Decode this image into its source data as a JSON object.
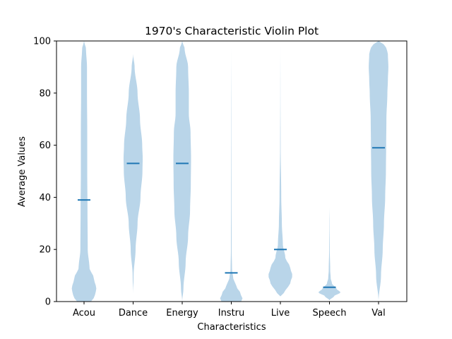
{
  "chart_data": {
    "type": "violin",
    "title": "1970's Characteristic Violin Plot",
    "xlabel": "Characteristics",
    "ylabel": "Average Values",
    "ylim": [
      0,
      100
    ],
    "yticks": [
      "0",
      "20",
      "40",
      "60",
      "80",
      "100"
    ],
    "grid": false,
    "colors": {
      "body": "#b9d5e9",
      "mean": "#1f77b4",
      "axis": "#000000"
    },
    "categories": [
      "Acou",
      "Dance",
      "Energy",
      "Instru",
      "Live",
      "Speech",
      "Val"
    ],
    "series": [
      {
        "category": "Acou",
        "mean": 39,
        "min": 0,
        "max": 100,
        "profile": [
          [
            0,
            0.28
          ],
          [
            2,
            0.44
          ],
          [
            5,
            0.5
          ],
          [
            9,
            0.4
          ],
          [
            13,
            0.22
          ],
          [
            20,
            0.15
          ],
          [
            35,
            0.14
          ],
          [
            50,
            0.13
          ],
          [
            65,
            0.13
          ],
          [
            80,
            0.12
          ],
          [
            90,
            0.12
          ],
          [
            97,
            0.08
          ],
          [
            100,
            0.0
          ]
        ]
      },
      {
        "category": "Dance",
        "mean": 53,
        "min": 3,
        "max": 95,
        "profile": [
          [
            3,
            0.0
          ],
          [
            10,
            0.02
          ],
          [
            20,
            0.1
          ],
          [
            30,
            0.18
          ],
          [
            40,
            0.3
          ],
          [
            50,
            0.38
          ],
          [
            55,
            0.39
          ],
          [
            60,
            0.37
          ],
          [
            70,
            0.28
          ],
          [
            80,
            0.18
          ],
          [
            90,
            0.06
          ],
          [
            95,
            0.0
          ]
        ]
      },
      {
        "category": "Energy",
        "mean": 53,
        "min": 0,
        "max": 100,
        "profile": [
          [
            0,
            0.0
          ],
          [
            5,
            0.05
          ],
          [
            15,
            0.14
          ],
          [
            25,
            0.24
          ],
          [
            35,
            0.32
          ],
          [
            45,
            0.35
          ],
          [
            55,
            0.36
          ],
          [
            65,
            0.34
          ],
          [
            72,
            0.27
          ],
          [
            80,
            0.27
          ],
          [
            90,
            0.24
          ],
          [
            97,
            0.1
          ],
          [
            100,
            0.0
          ]
        ]
      },
      {
        "category": "Instru",
        "mean": 11,
        "min": 0,
        "max": 100,
        "profile": [
          [
            0,
            0.4
          ],
          [
            1,
            0.46
          ],
          [
            3,
            0.38
          ],
          [
            6,
            0.2
          ],
          [
            9,
            0.08
          ],
          [
            12,
            0.03
          ],
          [
            20,
            0.015
          ],
          [
            40,
            0.01
          ],
          [
            70,
            0.006
          ],
          [
            100,
            0.0
          ]
        ]
      },
      {
        "category": "Live",
        "mean": 20,
        "min": 2,
        "max": 100,
        "profile": [
          [
            2,
            0.0
          ],
          [
            4,
            0.2
          ],
          [
            7,
            0.4
          ],
          [
            10,
            0.49
          ],
          [
            13,
            0.4
          ],
          [
            17,
            0.2
          ],
          [
            22,
            0.1
          ],
          [
            30,
            0.06
          ],
          [
            40,
            0.035
          ],
          [
            60,
            0.01
          ],
          [
            80,
            0.004
          ],
          [
            100,
            0.0
          ]
        ]
      },
      {
        "category": "Speech",
        "mean": 5.5,
        "min": 0.5,
        "max": 37,
        "profile": [
          [
            0.5,
            0.0
          ],
          [
            2,
            0.18
          ],
          [
            3.5,
            0.45
          ],
          [
            5,
            0.28
          ],
          [
            7,
            0.1
          ],
          [
            9,
            0.05
          ],
          [
            12,
            0.03
          ],
          [
            20,
            0.012
          ],
          [
            30,
            0.006
          ],
          [
            37,
            0.0
          ]
        ]
      },
      {
        "category": "Val",
        "mean": 59,
        "min": 0,
        "max": 100,
        "profile": [
          [
            0,
            0.0
          ],
          [
            10,
            0.1
          ],
          [
            20,
            0.17
          ],
          [
            30,
            0.22
          ],
          [
            40,
            0.27
          ],
          [
            50,
            0.3
          ],
          [
            60,
            0.31
          ],
          [
            70,
            0.32
          ],
          [
            80,
            0.36
          ],
          [
            85,
            0.38
          ],
          [
            90,
            0.4
          ],
          [
            95,
            0.38
          ],
          [
            98,
            0.3
          ],
          [
            100,
            0.0
          ]
        ]
      }
    ]
  }
}
